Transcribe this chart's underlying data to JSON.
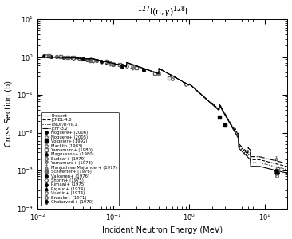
{
  "title": "$^{127}$I(n,$\\gamma$)$^{128}$I",
  "xlabel": "Incident Neutron Energy (MeV)",
  "ylabel": "Cross Section (b)",
  "xlim": [
    0.01,
    20
  ],
  "ylim": [
    0.0001,
    10
  ],
  "legend_entries": [
    "Present",
    "JENDL-4.0",
    "ENDF/B-VII.1",
    "JEFF-3.2",
    "Noguere+ (2006)",
    "Noguere+ (2005)",
    "Voignier+ (1992)",
    "Macklin (1983)",
    "Yamamuro+ (1980)",
    "Magnusson+ (1980)",
    "Budnar+ (1979)",
    "Yamamuro+ (1978)",
    "Manjushree Majumder+ (1977)",
    "Schwerter+ (1976)",
    "Valkonen+ (1976)",
    "Shorin+ (1975)",
    "Rimawi+ (1975)",
    "Rigaud+ (1974)",
    "Vuletin+ (1974)",
    "Brzosko+ (1971)",
    "Chaturvedi+ (1970)"
  ]
}
